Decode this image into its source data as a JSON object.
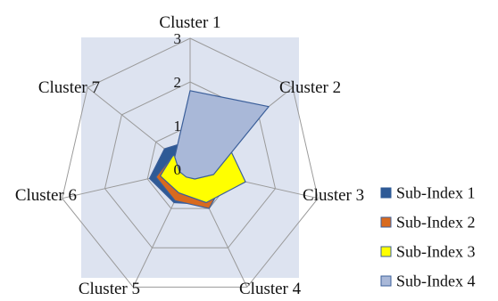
{
  "chart_data": {
    "type": "radar",
    "categories": [
      "Cluster 1",
      "Cluster 2",
      "Cluster 3",
      "Cluster 4",
      "Cluster 5",
      "Cluster 6",
      "Cluster 7"
    ],
    "rlim": [
      0,
      3
    ],
    "ticks": [
      "0",
      "1",
      "2",
      "3"
    ],
    "grid": true,
    "legend_position": "right",
    "series": [
      {
        "name": "Sub-Index  1",
        "color": "#2e5a96",
        "values": [
          0.65,
          0.75,
          0.55,
          0.9,
          0.85,
          0.95,
          0.75
        ]
      },
      {
        "name": "Sub-Index  2",
        "color": "#d86a1e",
        "values": [
          0.25,
          0.55,
          0.85,
          1.0,
          0.8,
          0.8,
          0.5
        ]
      },
      {
        "name": "Sub-Index  3",
        "color": "#ffff00",
        "values": [
          0.25,
          1.05,
          1.3,
          0.85,
          0.6,
          0.7,
          0.5
        ]
      },
      {
        "name": "Sub-Index  4",
        "color": "#a9b8d8",
        "values": [
          1.8,
          2.3,
          0.55,
          0.25,
          0.2,
          0.25,
          0.45
        ]
      }
    ]
  }
}
